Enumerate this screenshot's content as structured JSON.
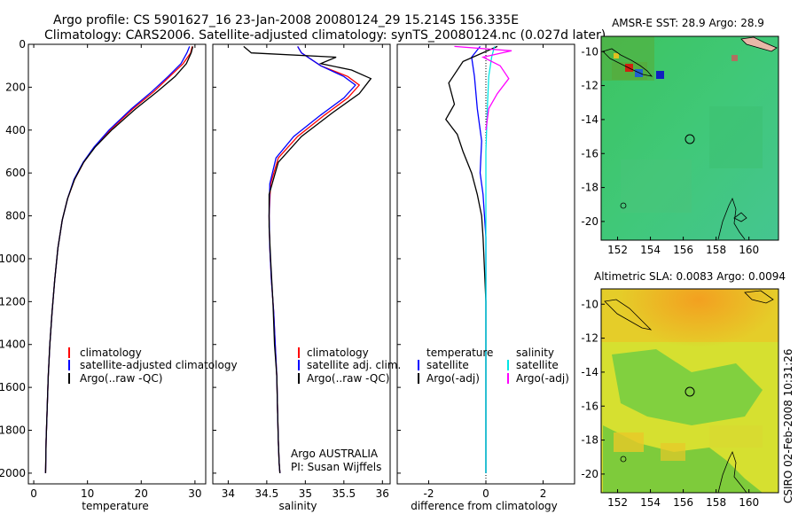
{
  "title_line1": "Argo profile: CS 5901627_16 23-Jan-2008 20080124_29 15.214S 156.335E",
  "title_line2": "Climatology: CARS2006. Satellite-adjusted climatology: synTS_20080124.nc (0.027d later)",
  "credit": "Argo AUSTRALIA",
  "pi": "PI: Susan Wijffels",
  "timestamp": "CSIRO 02-Feb-2008 10:31:26",
  "colors": {
    "climatology": "#ff0000",
    "satellite": "#0000ff",
    "argo": "#000000",
    "argo_sal_adj": "#ff00ff",
    "satellite_sal": "#00e5e5"
  },
  "chart_data": [
    {
      "type": "line",
      "xlabel": "temperature",
      "ylabel": "",
      "xlim": [
        -1,
        32
      ],
      "ylim": [
        2050,
        0
      ],
      "reverse_y": true,
      "xticks": [
        0,
        10,
        20,
        30
      ],
      "yticks": [
        0,
        200,
        400,
        600,
        800,
        1000,
        1200,
        1400,
        1600,
        1800,
        2000
      ],
      "legend": [
        "climatology",
        "satellite-adjusted climatology",
        "Argo(..raw -QC)"
      ],
      "series": [
        {
          "name": "climatology",
          "color": "climatology",
          "x": [
            29.5,
            29.2,
            27.8,
            25.3,
            22.4,
            18.5,
            14.2,
            11.3,
            9.3,
            7.6,
            6.3,
            5.3,
            4.5,
            3.9,
            3.4,
            3.0,
            2.7,
            2.5,
            2.3,
            2.2
          ],
          "y": [
            10,
            40,
            90,
            150,
            220,
            300,
            400,
            480,
            550,
            630,
            720,
            820,
            950,
            1100,
            1250,
            1400,
            1550,
            1700,
            1850,
            2000
          ]
        },
        {
          "name": "satellite-adjusted climatology",
          "color": "satellite",
          "x": [
            29.0,
            28.5,
            27.4,
            25.0,
            22.0,
            18.2,
            14.0,
            11.2,
            9.2,
            7.5,
            6.3,
            5.3,
            4.5,
            3.9,
            3.4,
            3.0,
            2.7,
            2.5,
            2.3,
            2.2
          ],
          "y": [
            10,
            40,
            90,
            150,
            220,
            300,
            400,
            480,
            550,
            630,
            720,
            820,
            950,
            1100,
            1250,
            1400,
            1550,
            1700,
            1850,
            2000
          ]
        },
        {
          "name": "Argo(..raw -QC)",
          "color": "argo",
          "x": [
            29.6,
            29.3,
            28.4,
            26.3,
            23.0,
            19.0,
            14.5,
            11.4,
            9.3,
            7.6,
            6.3,
            5.3,
            4.5,
            3.9,
            3.4,
            3.0,
            2.7,
            2.5,
            2.3,
            2.2
          ],
          "y": [
            10,
            40,
            90,
            150,
            220,
            300,
            400,
            480,
            550,
            630,
            720,
            820,
            950,
            1100,
            1250,
            1400,
            1550,
            1700,
            1850,
            2000
          ]
        }
      ]
    },
    {
      "type": "line",
      "xlabel": "salinity",
      "ylabel": "",
      "xlim": [
        33.8,
        36.1
      ],
      "ylim": [
        2050,
        0
      ],
      "reverse_y": true,
      "xticks": [
        34,
        34.5,
        35,
        35.5,
        36
      ],
      "legend": [
        "climatology",
        "satellite adj. clim.",
        "Argo(..raw -QC)"
      ],
      "series": [
        {
          "name": "climatology",
          "color": "climatology",
          "x": [
            34.9,
            34.95,
            35.2,
            35.55,
            35.7,
            35.55,
            35.25,
            34.9,
            34.65,
            34.55,
            34.53,
            34.54,
            34.56,
            34.59,
            34.61,
            34.63,
            34.64,
            34.65,
            34.66,
            34.67
          ],
          "y": [
            10,
            40,
            100,
            150,
            190,
            250,
            330,
            430,
            530,
            650,
            800,
            950,
            1100,
            1250,
            1400,
            1550,
            1700,
            1850,
            1950,
            2000
          ]
        },
        {
          "name": "satellite adj. clim.",
          "color": "satellite",
          "x": [
            34.9,
            34.95,
            35.2,
            35.5,
            35.65,
            35.5,
            35.2,
            34.85,
            34.62,
            34.54,
            34.53,
            34.54,
            34.56,
            34.59,
            34.61,
            34.63,
            34.64,
            34.65,
            34.66,
            34.67
          ],
          "y": [
            10,
            40,
            100,
            150,
            190,
            250,
            330,
            430,
            530,
            650,
            800,
            950,
            1100,
            1250,
            1400,
            1550,
            1700,
            1850,
            1950,
            2000
          ]
        },
        {
          "name": "Argo(..raw -QC)",
          "color": "argo",
          "x": [
            34.2,
            34.3,
            35.4,
            35.2,
            35.6,
            35.85,
            35.7,
            35.35,
            34.95,
            34.65,
            34.53,
            34.53,
            34.55,
            34.58,
            34.6,
            34.63,
            34.64,
            34.65,
            34.66,
            34.67
          ],
          "y": [
            10,
            40,
            60,
            90,
            120,
            160,
            230,
            320,
            430,
            550,
            700,
            850,
            1000,
            1200,
            1400,
            1550,
            1700,
            1850,
            1950,
            2000
          ]
        }
      ]
    },
    {
      "type": "line",
      "xlabel": "difference from climatology",
      "ylabel": "",
      "xlim": [
        -3.1,
        3.1
      ],
      "ylim": [
        2050,
        0
      ],
      "reverse_y": true,
      "xticks": [
        -2,
        0,
        2
      ],
      "legend_left": [
        "temperature",
        "satellite",
        "Argo(-adj)"
      ],
      "legend_right": [
        "salinity",
        "satellite",
        "Argo(-adj)"
      ],
      "series": [
        {
          "name": "temperature satellite",
          "color": "satellite",
          "x": [
            -0.2,
            -0.5,
            -0.4,
            -0.3,
            -0.15,
            -0.2,
            -0.1,
            -0.05,
            0.0,
            0.0,
            0.0,
            0.0,
            0.0,
            0.0,
            0.0,
            0.0
          ],
          "y": [
            10,
            60,
            150,
            300,
            450,
            600,
            700,
            800,
            900,
            1000,
            1200,
            1400,
            1600,
            1800,
            1950,
            2000
          ]
        },
        {
          "name": "temperature Argo(-adj)",
          "color": "argo",
          "x": [
            0.4,
            -0.8,
            -1.3,
            -1.1,
            -1.4,
            -1.0,
            -0.8,
            -0.5,
            -0.3,
            -0.15,
            -0.1,
            -0.05,
            0.0,
            0.0,
            0.0
          ],
          "y": [
            10,
            80,
            180,
            280,
            350,
            420,
            500,
            600,
            700,
            800,
            900,
            1050,
            1200,
            1500,
            2000
          ]
        },
        {
          "name": "salinity satellite",
          "color": "satellite_sal",
          "x": [
            0.3,
            0.2,
            0.1,
            0.05,
            0.0,
            0.0,
            0.0,
            0.0,
            0.0,
            0.0
          ],
          "y": [
            10,
            60,
            150,
            300,
            500,
            800,
            1100,
            1400,
            1700,
            2000
          ]
        },
        {
          "name": "salinity Argo(-adj)",
          "color": "argo_sal_adj",
          "x": [
            -1.1,
            0.9,
            -0.1,
            0.5,
            0.8,
            0.4,
            0.1,
            0.0
          ],
          "y": [
            10,
            30,
            60,
            100,
            160,
            230,
            300,
            400
          ]
        }
      ]
    },
    {
      "type": "heatmap",
      "title": "AMSR-E SST: 28.9 Argo: 28.9",
      "xlim": [
        151,
        161.8
      ],
      "ylim": [
        -21.1,
        -9.1
      ],
      "xticks": [
        152,
        154,
        156,
        158,
        160
      ],
      "yticks": [
        -10,
        -12,
        -14,
        -16,
        -18,
        -20
      ],
      "marker": {
        "lon": 156.335,
        "lat": -15.214
      }
    },
    {
      "type": "heatmap",
      "title": "Altimetric SLA: 0.0083 Argo: 0.0094",
      "xlim": [
        151,
        161.8
      ],
      "ylim": [
        -21.1,
        -9.1
      ],
      "xticks": [
        152,
        154,
        156,
        158,
        160
      ],
      "yticks": [
        -10,
        -12,
        -14,
        -16,
        -18,
        -20
      ],
      "marker": {
        "lon": 156.335,
        "lat": -15.214
      }
    }
  ]
}
